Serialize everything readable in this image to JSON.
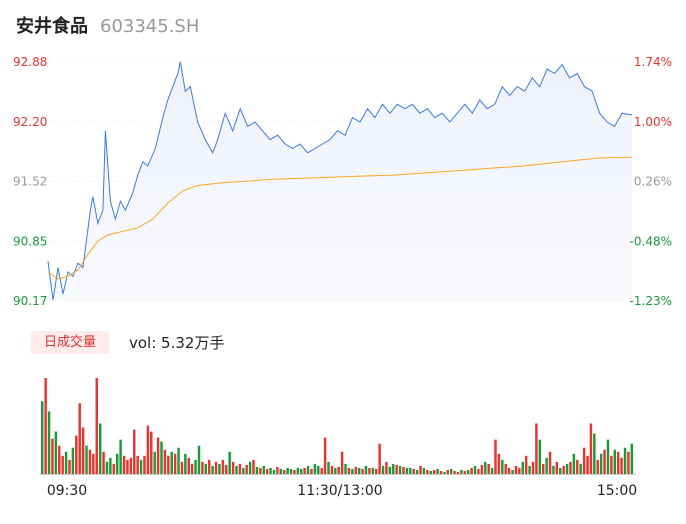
{
  "stock": {
    "name": "安井食品",
    "code": "603345.SH"
  },
  "colors": {
    "up": "#e8342e",
    "down": "#1a9b3a",
    "price_line": "#3d7be3",
    "avg_line": "#f5a623",
    "grid": "#e6e6e6"
  },
  "chart_data": {
    "type": "line",
    "price_axis": {
      "ticks": [
        "92.88",
        "92.20",
        "91.52",
        "90.85",
        "90.17"
      ],
      "range": [
        90.17,
        92.88
      ]
    },
    "percent_axis": {
      "ticks": [
        "1.74%",
        "1.00%",
        "0.26%",
        "-0.48%",
        "-1.23%"
      ],
      "tick_colors": [
        "#e8342e",
        "#e8342e",
        "#999999",
        "#1a9b3a",
        "#1a9b3a"
      ]
    },
    "time_labels": [
      "09:30",
      "11:30/13:00",
      "15:00"
    ],
    "price_series": [
      {
        "t": 0,
        "p": 90.62
      },
      {
        "t": 2,
        "p": 90.18
      },
      {
        "t": 4,
        "p": 90.55
      },
      {
        "t": 6,
        "p": 90.25
      },
      {
        "t": 8,
        "p": 90.5
      },
      {
        "t": 10,
        "p": 90.45
      },
      {
        "t": 12,
        "p": 90.6
      },
      {
        "t": 14,
        "p": 90.55
      },
      {
        "t": 17,
        "p": 91.2
      },
      {
        "t": 18,
        "p": 91.35
      },
      {
        "t": 20,
        "p": 91.05
      },
      {
        "t": 22,
        "p": 91.2
      },
      {
        "t": 23,
        "p": 92.1
      },
      {
        "t": 25,
        "p": 91.3
      },
      {
        "t": 27,
        "p": 91.1
      },
      {
        "t": 29,
        "p": 91.3
      },
      {
        "t": 31,
        "p": 91.2
      },
      {
        "t": 34,
        "p": 91.4
      },
      {
        "t": 36,
        "p": 91.6
      },
      {
        "t": 38,
        "p": 91.75
      },
      {
        "t": 40,
        "p": 91.7
      },
      {
        "t": 43,
        "p": 91.9
      },
      {
        "t": 46,
        "p": 92.25
      },
      {
        "t": 48,
        "p": 92.45
      },
      {
        "t": 50,
        "p": 92.6
      },
      {
        "t": 52,
        "p": 92.75
      },
      {
        "t": 53,
        "p": 92.88
      },
      {
        "t": 55,
        "p": 92.55
      },
      {
        "t": 57,
        "p": 92.6
      },
      {
        "t": 60,
        "p": 92.2
      },
      {
        "t": 63,
        "p": 92.0
      },
      {
        "t": 66,
        "p": 91.85
      },
      {
        "t": 68,
        "p": 92.0
      },
      {
        "t": 71,
        "p": 92.3
      },
      {
        "t": 74,
        "p": 92.1
      },
      {
        "t": 77,
        "p": 92.35
      },
      {
        "t": 80,
        "p": 92.15
      },
      {
        "t": 83,
        "p": 92.2
      },
      {
        "t": 86,
        "p": 92.1
      },
      {
        "t": 89,
        "p": 92.0
      },
      {
        "t": 92,
        "p": 92.05
      },
      {
        "t": 95,
        "p": 91.95
      },
      {
        "t": 98,
        "p": 91.9
      },
      {
        "t": 101,
        "p": 91.95
      },
      {
        "t": 104,
        "p": 91.85
      },
      {
        "t": 107,
        "p": 91.9
      },
      {
        "t": 110,
        "p": 91.95
      },
      {
        "t": 113,
        "p": 92.0
      },
      {
        "t": 116,
        "p": 92.1
      },
      {
        "t": 119,
        "p": 92.05
      },
      {
        "t": 122,
        "p": 92.25
      },
      {
        "t": 125,
        "p": 92.2
      },
      {
        "t": 128,
        "p": 92.35
      },
      {
        "t": 131,
        "p": 92.25
      },
      {
        "t": 134,
        "p": 92.4
      },
      {
        "t": 137,
        "p": 92.3
      },
      {
        "t": 140,
        "p": 92.4
      },
      {
        "t": 143,
        "p": 92.35
      },
      {
        "t": 146,
        "p": 92.4
      },
      {
        "t": 149,
        "p": 92.3
      },
      {
        "t": 152,
        "p": 92.35
      },
      {
        "t": 155,
        "p": 92.25
      },
      {
        "t": 158,
        "p": 92.3
      },
      {
        "t": 161,
        "p": 92.2
      },
      {
        "t": 164,
        "p": 92.3
      },
      {
        "t": 167,
        "p": 92.4
      },
      {
        "t": 170,
        "p": 92.3
      },
      {
        "t": 173,
        "p": 92.45
      },
      {
        "t": 176,
        "p": 92.35
      },
      {
        "t": 179,
        "p": 92.4
      },
      {
        "t": 182,
        "p": 92.6
      },
      {
        "t": 185,
        "p": 92.5
      },
      {
        "t": 188,
        "p": 92.6
      },
      {
        "t": 191,
        "p": 92.55
      },
      {
        "t": 194,
        "p": 92.7
      },
      {
        "t": 197,
        "p": 92.6
      },
      {
        "t": 200,
        "p": 92.8
      },
      {
        "t": 203,
        "p": 92.75
      },
      {
        "t": 206,
        "p": 92.85
      },
      {
        "t": 209,
        "p": 92.7
      },
      {
        "t": 212,
        "p": 92.75
      },
      {
        "t": 215,
        "p": 92.6
      },
      {
        "t": 218,
        "p": 92.55
      },
      {
        "t": 221,
        "p": 92.3
      },
      {
        "t": 224,
        "p": 92.2
      },
      {
        "t": 227,
        "p": 92.15
      },
      {
        "t": 230,
        "p": 92.3
      },
      {
        "t": 234,
        "p": 92.28
      }
    ],
    "avg_series": [
      {
        "t": 0,
        "p": 90.5
      },
      {
        "t": 4,
        "p": 90.42
      },
      {
        "t": 8,
        "p": 90.45
      },
      {
        "t": 12,
        "p": 90.52
      },
      {
        "t": 16,
        "p": 90.7
      },
      {
        "t": 20,
        "p": 90.85
      },
      {
        "t": 24,
        "p": 90.92
      },
      {
        "t": 30,
        "p": 90.96
      },
      {
        "t": 36,
        "p": 91.0
      },
      {
        "t": 42,
        "p": 91.1
      },
      {
        "t": 48,
        "p": 91.28
      },
      {
        "t": 54,
        "p": 91.42
      },
      {
        "t": 60,
        "p": 91.48
      },
      {
        "t": 70,
        "p": 91.51
      },
      {
        "t": 80,
        "p": 91.53
      },
      {
        "t": 90,
        "p": 91.55
      },
      {
        "t": 100,
        "p": 91.56
      },
      {
        "t": 110,
        "p": 91.57
      },
      {
        "t": 120,
        "p": 91.58
      },
      {
        "t": 130,
        "p": 91.59
      },
      {
        "t": 140,
        "p": 91.6
      },
      {
        "t": 150,
        "p": 91.62
      },
      {
        "t": 160,
        "p": 91.64
      },
      {
        "t": 170,
        "p": 91.66
      },
      {
        "t": 180,
        "p": 91.68
      },
      {
        "t": 190,
        "p": 91.7
      },
      {
        "t": 200,
        "p": 91.73
      },
      {
        "t": 210,
        "p": 91.76
      },
      {
        "t": 220,
        "p": 91.79
      },
      {
        "t": 234,
        "p": 91.8
      }
    ],
    "volume_tag": "日成交量",
    "volume_text": "vol: 5.32万手",
    "volume_series": [
      {
        "v": 72,
        "d": "down"
      },
      {
        "v": 95,
        "d": "up"
      },
      {
        "v": 62,
        "d": "down"
      },
      {
        "v": 35,
        "d": "up"
      },
      {
        "v": 42,
        "d": "down"
      },
      {
        "v": 28,
        "d": "up"
      },
      {
        "v": 18,
        "d": "up"
      },
      {
        "v": 22,
        "d": "down"
      },
      {
        "v": 14,
        "d": "up"
      },
      {
        "v": 26,
        "d": "down"
      },
      {
        "v": 38,
        "d": "up"
      },
      {
        "v": 70,
        "d": "up"
      },
      {
        "v": 46,
        "d": "up"
      },
      {
        "v": 28,
        "d": "down"
      },
      {
        "v": 24,
        "d": "up"
      },
      {
        "v": 20,
        "d": "up"
      },
      {
        "v": 95,
        "d": "up"
      },
      {
        "v": 50,
        "d": "down"
      },
      {
        "v": 22,
        "d": "up"
      },
      {
        "v": 12,
        "d": "down"
      },
      {
        "v": 16,
        "d": "down"
      },
      {
        "v": 10,
        "d": "up"
      },
      {
        "v": 20,
        "d": "down"
      },
      {
        "v": 34,
        "d": "down"
      },
      {
        "v": 18,
        "d": "up"
      },
      {
        "v": 14,
        "d": "up"
      },
      {
        "v": 16,
        "d": "up"
      },
      {
        "v": 44,
        "d": "up"
      },
      {
        "v": 18,
        "d": "up"
      },
      {
        "v": 14,
        "d": "down"
      },
      {
        "v": 18,
        "d": "up"
      },
      {
        "v": 48,
        "d": "up"
      },
      {
        "v": 42,
        "d": "up"
      },
      {
        "v": 22,
        "d": "down"
      },
      {
        "v": 36,
        "d": "up"
      },
      {
        "v": 32,
        "d": "down"
      },
      {
        "v": 24,
        "d": "up"
      },
      {
        "v": 18,
        "d": "up"
      },
      {
        "v": 22,
        "d": "down"
      },
      {
        "v": 20,
        "d": "up"
      },
      {
        "v": 26,
        "d": "down"
      },
      {
        "v": 12,
        "d": "up"
      },
      {
        "v": 20,
        "d": "down"
      },
      {
        "v": 16,
        "d": "up"
      },
      {
        "v": 10,
        "d": "up"
      },
      {
        "v": 14,
        "d": "down"
      },
      {
        "v": 28,
        "d": "down"
      },
      {
        "v": 12,
        "d": "up"
      },
      {
        "v": 10,
        "d": "down"
      },
      {
        "v": 14,
        "d": "up"
      },
      {
        "v": 8,
        "d": "down"
      },
      {
        "v": 12,
        "d": "up"
      },
      {
        "v": 10,
        "d": "down"
      },
      {
        "v": 14,
        "d": "up"
      },
      {
        "v": 9,
        "d": "up"
      },
      {
        "v": 22,
        "d": "down"
      },
      {
        "v": 12,
        "d": "up"
      },
      {
        "v": 8,
        "d": "down"
      },
      {
        "v": 10,
        "d": "up"
      },
      {
        "v": 6,
        "d": "down"
      },
      {
        "v": 9,
        "d": "up"
      },
      {
        "v": 12,
        "d": "down"
      },
      {
        "v": 14,
        "d": "up"
      },
      {
        "v": 7,
        "d": "down"
      },
      {
        "v": 6,
        "d": "up"
      },
      {
        "v": 8,
        "d": "down"
      },
      {
        "v": 5,
        "d": "up"
      },
      {
        "v": 6,
        "d": "down"
      },
      {
        "v": 4,
        "d": "down"
      },
      {
        "v": 7,
        "d": "up"
      },
      {
        "v": 5,
        "d": "down"
      },
      {
        "v": 4,
        "d": "up"
      },
      {
        "v": 6,
        "d": "down"
      },
      {
        "v": 5,
        "d": "down"
      },
      {
        "v": 4,
        "d": "up"
      },
      {
        "v": 6,
        "d": "down"
      },
      {
        "v": 5,
        "d": "down"
      },
      {
        "v": 6,
        "d": "up"
      },
      {
        "v": 8,
        "d": "down"
      },
      {
        "v": 5,
        "d": "up"
      },
      {
        "v": 10,
        "d": "down"
      },
      {
        "v": 8,
        "d": "down"
      },
      {
        "v": 6,
        "d": "up"
      },
      {
        "v": 36,
        "d": "up"
      },
      {
        "v": 12,
        "d": "down"
      },
      {
        "v": 8,
        "d": "up"
      },
      {
        "v": 6,
        "d": "down"
      },
      {
        "v": 7,
        "d": "up"
      },
      {
        "v": 22,
        "d": "up"
      },
      {
        "v": 10,
        "d": "down"
      },
      {
        "v": 6,
        "d": "up"
      },
      {
        "v": 5,
        "d": "down"
      },
      {
        "v": 7,
        "d": "up"
      },
      {
        "v": 6,
        "d": "down"
      },
      {
        "v": 5,
        "d": "up"
      },
      {
        "v": 8,
        "d": "down"
      },
      {
        "v": 6,
        "d": "up"
      },
      {
        "v": 6,
        "d": "down"
      },
      {
        "v": 5,
        "d": "up"
      },
      {
        "v": 30,
        "d": "up"
      },
      {
        "v": 8,
        "d": "down"
      },
      {
        "v": 12,
        "d": "up"
      },
      {
        "v": 7,
        "d": "down"
      },
      {
        "v": 10,
        "d": "down"
      },
      {
        "v": 9,
        "d": "up"
      },
      {
        "v": 8,
        "d": "down"
      },
      {
        "v": 7,
        "d": "up"
      },
      {
        "v": 6,
        "d": "down"
      },
      {
        "v": 6,
        "d": "down"
      },
      {
        "v": 5,
        "d": "up"
      },
      {
        "v": 4,
        "d": "down"
      },
      {
        "v": 8,
        "d": "up"
      },
      {
        "v": 6,
        "d": "down"
      },
      {
        "v": 4,
        "d": "up"
      },
      {
        "v": 3,
        "d": "down"
      },
      {
        "v": 4,
        "d": "up"
      },
      {
        "v": 5,
        "d": "down"
      },
      {
        "v": 3,
        "d": "up"
      },
      {
        "v": 2,
        "d": "down"
      },
      {
        "v": 4,
        "d": "up"
      },
      {
        "v": 5,
        "d": "down"
      },
      {
        "v": 3,
        "d": "up"
      },
      {
        "v": 2,
        "d": "up"
      },
      {
        "v": 4,
        "d": "down"
      },
      {
        "v": 3,
        "d": "up"
      },
      {
        "v": 4,
        "d": "down"
      },
      {
        "v": 6,
        "d": "up"
      },
      {
        "v": 8,
        "d": "down"
      },
      {
        "v": 5,
        "d": "up"
      },
      {
        "v": 9,
        "d": "up"
      },
      {
        "v": 12,
        "d": "down"
      },
      {
        "v": 10,
        "d": "up"
      },
      {
        "v": 6,
        "d": "down"
      },
      {
        "v": 34,
        "d": "up"
      },
      {
        "v": 20,
        "d": "up"
      },
      {
        "v": 14,
        "d": "down"
      },
      {
        "v": 10,
        "d": "up"
      },
      {
        "v": 6,
        "d": "up"
      },
      {
        "v": 4,
        "d": "down"
      },
      {
        "v": 8,
        "d": "up"
      },
      {
        "v": 6,
        "d": "up"
      },
      {
        "v": 12,
        "d": "down"
      },
      {
        "v": 18,
        "d": "up"
      },
      {
        "v": 8,
        "d": "down"
      },
      {
        "v": 12,
        "d": "up"
      },
      {
        "v": 50,
        "d": "up"
      },
      {
        "v": 34,
        "d": "down"
      },
      {
        "v": 10,
        "d": "up"
      },
      {
        "v": 16,
        "d": "down"
      },
      {
        "v": 22,
        "d": "up"
      },
      {
        "v": 8,
        "d": "down"
      },
      {
        "v": 12,
        "d": "up"
      },
      {
        "v": 6,
        "d": "down"
      },
      {
        "v": 8,
        "d": "up"
      },
      {
        "v": 10,
        "d": "down"
      },
      {
        "v": 12,
        "d": "up"
      },
      {
        "v": 20,
        "d": "down"
      },
      {
        "v": 14,
        "d": "up"
      },
      {
        "v": 10,
        "d": "down"
      },
      {
        "v": 26,
        "d": "up"
      },
      {
        "v": 18,
        "d": "up"
      },
      {
        "v": 50,
        "d": "up"
      },
      {
        "v": 40,
        "d": "down"
      },
      {
        "v": 14,
        "d": "up"
      },
      {
        "v": 20,
        "d": "down"
      },
      {
        "v": 24,
        "d": "up"
      },
      {
        "v": 34,
        "d": "down"
      },
      {
        "v": 18,
        "d": "up"
      },
      {
        "v": 24,
        "d": "down"
      },
      {
        "v": 22,
        "d": "up"
      },
      {
        "v": 16,
        "d": "up"
      },
      {
        "v": 26,
        "d": "down"
      },
      {
        "v": 22,
        "d": "up"
      },
      {
        "v": 30,
        "d": "down"
      }
    ]
  }
}
